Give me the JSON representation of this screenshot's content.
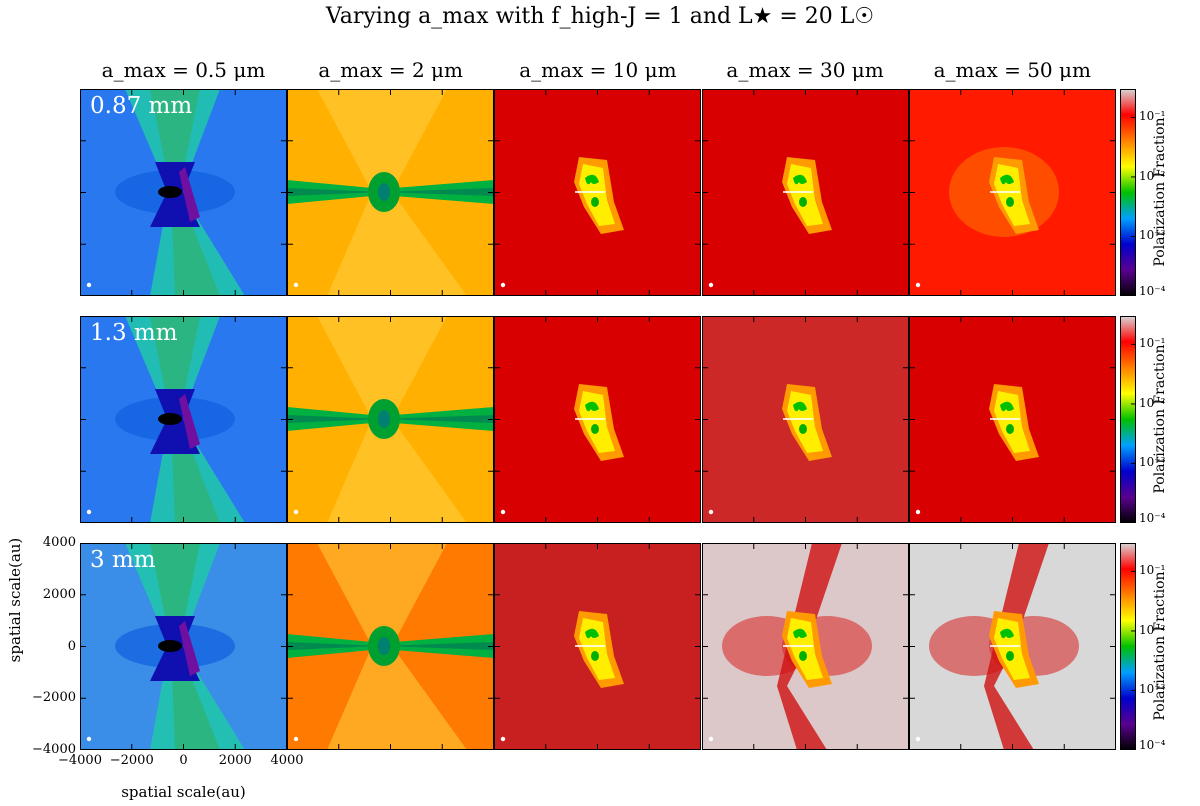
{
  "title": "Varying a_max with f_high-J = 1 and L★ = 20 L☉",
  "columns": [
    "a_max = 0.5 μm",
    "a_max = 2 μm",
    "a_max = 10 μm",
    "a_max = 30 μm",
    "a_max = 50 μm"
  ],
  "rows": [
    "0.87 mm",
    "1.3 mm",
    "3 mm"
  ],
  "axes": {
    "xlabel": "spatial scale(au)",
    "ylabel": "spatial scale(au)",
    "xticks": [
      "−4000",
      "−2000",
      "0",
      "2000",
      "4000"
    ],
    "yticks": [
      "4000",
      "2000",
      "0",
      "−2000",
      "−4000"
    ]
  },
  "colorbar": {
    "label": "Polarization Fraction",
    "ticks": [
      "10⁻¹",
      "10⁻²",
      "10⁻³",
      "10⁻⁴"
    ],
    "scale": "log",
    "range": [
      0.0001,
      0.3
    ]
  },
  "chart_data": {
    "type": "heatmap",
    "title": "Varying a_max with f_high-J = 1 and L★ = 20 L☉",
    "xlabel": "spatial scale(au)",
    "ylabel": "spatial scale(au)",
    "xlim": [
      -4000,
      4000
    ],
    "ylim": [
      -4000,
      4000
    ],
    "color_scale": "log",
    "color_range": [
      0.0001,
      0.3
    ],
    "colormap_stops": [
      "#000000",
      "#5a0090",
      "#0000cc",
      "#00a0ff",
      "#00c000",
      "#ffff00",
      "#ff8000",
      "#ff0000",
      "#d8d8d8"
    ],
    "wavelengths": [
      "0.87 mm",
      "1.3 mm",
      "3 mm"
    ],
    "grain_sizes": [
      "a_max = 0.5 μm",
      "a_max = 2 μm",
      "a_max = 10 μm",
      "a_max = 30 μm",
      "a_max = 50 μm"
    ],
    "panel_background_colors": [
      [
        "#2a78f0",
        "#ffb000",
        "#d80000",
        "#d80000",
        "#ff1a00"
      ],
      [
        "#2a78f0",
        "#ffb000",
        "#d80000",
        "#cc2828",
        "#d80000"
      ],
      [
        "#3a8ee8",
        "#ff7a00",
        "#c82020",
        "#dcc8c8",
        "#d8d8d8"
      ]
    ]
  }
}
